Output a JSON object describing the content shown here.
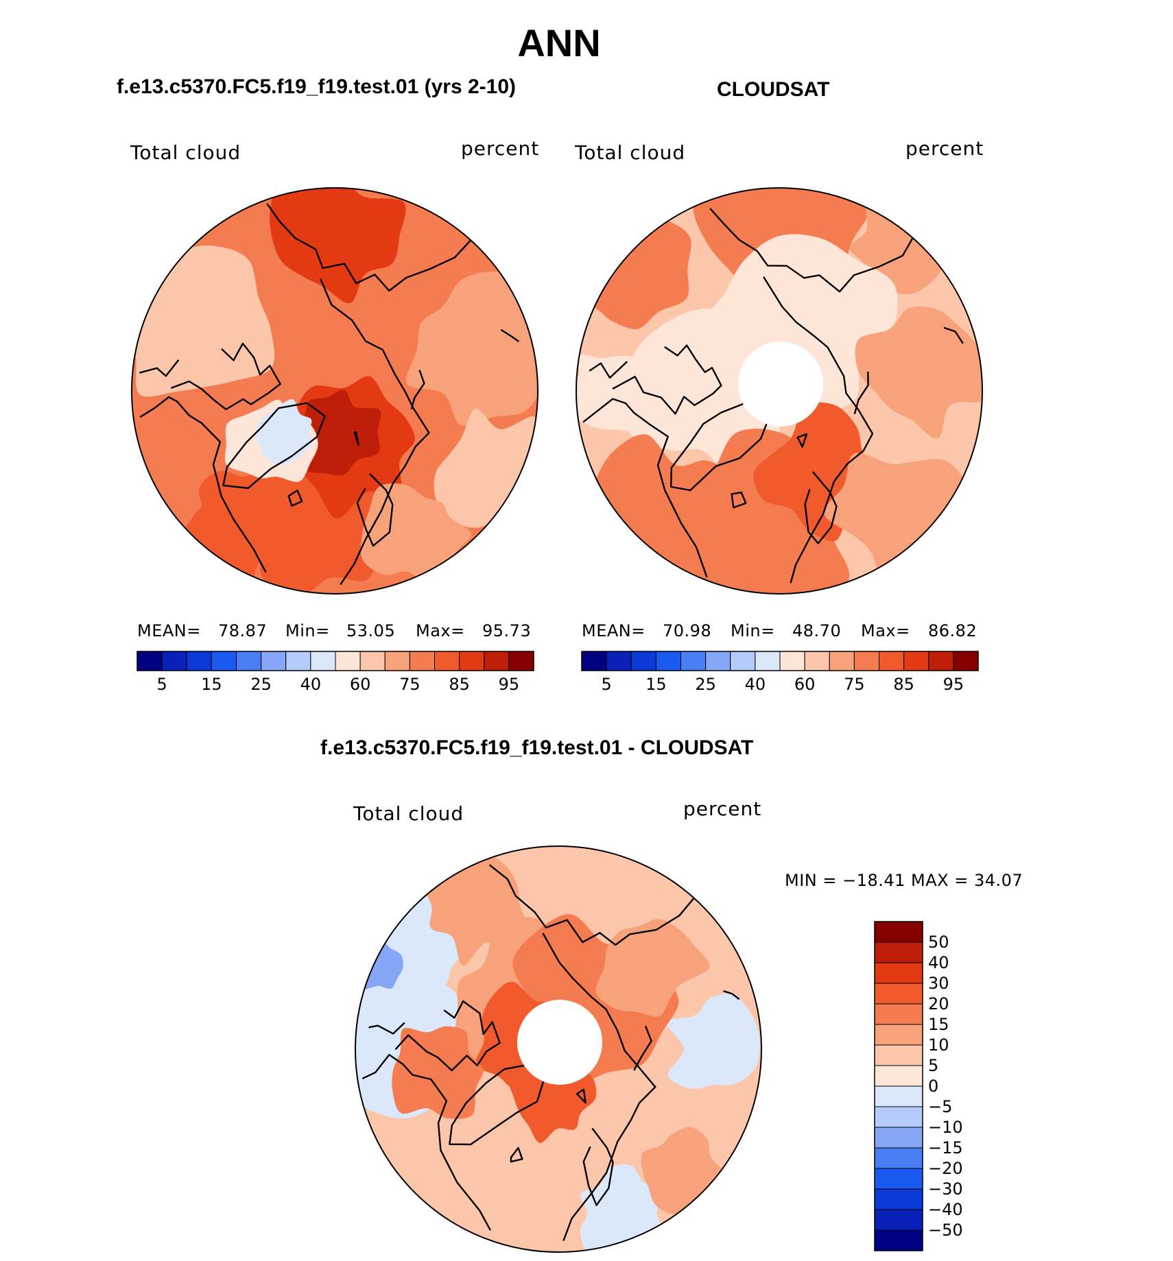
{
  "figure": {
    "title": "ANN"
  },
  "colors": {
    "cmap_full": [
      "#000080",
      "#0a21b8",
      "#0b3ad8",
      "#1a5af0",
      "#4a7ef6",
      "#86a6f7",
      "#b5cbf9",
      "#dbe8fb",
      "#fde6d8",
      "#fbc6aa",
      "#f8a27b",
      "#f47c50",
      "#f05a2c",
      "#e33a14",
      "#bf1e08",
      "#860000"
    ],
    "cmap_diff": [
      "#860000",
      "#bf1e08",
      "#e33a14",
      "#f05a2c",
      "#f47c50",
      "#f8a27b",
      "#fbc6aa",
      "#fde6d8",
      "#dbe8fb",
      "#b5cbf9",
      "#86a6f7",
      "#4a7ef6",
      "#1a5af0",
      "#0b3ad8",
      "#0a21b8",
      "#000080"
    ],
    "coastline": "#000000",
    "hole": "#ffffff"
  },
  "chart_data": [
    {
      "type": "heatmap",
      "projection": "north-polar-stereographic",
      "title": "f.e13.c5370.FC5.f19_f19.test.01 (yrs 2-10)",
      "left_label": "Total cloud",
      "right_label": "percent",
      "stats": {
        "mean_label": "MEAN=",
        "mean": "78.87",
        "min_label": "Min=",
        "min": "53.05",
        "max_label": "Max=",
        "max": "95.73"
      },
      "colorbar_ticks": [
        "5",
        "15",
        "25",
        "40",
        "60",
        "75",
        "85",
        "95"
      ],
      "pole_hole": false
    },
    {
      "type": "heatmap",
      "projection": "north-polar-stereographic",
      "title": "CLOUDSAT",
      "left_label": "Total cloud",
      "right_label": "percent",
      "stats": {
        "mean_label": "MEAN=",
        "mean": "70.98",
        "min_label": "Min=",
        "min": "48.70",
        "max_label": "Max=",
        "max": "86.82"
      },
      "colorbar_ticks": [
        "5",
        "15",
        "25",
        "40",
        "60",
        "75",
        "85",
        "95"
      ],
      "pole_hole": true
    },
    {
      "type": "heatmap",
      "projection": "north-polar-stereographic",
      "title": "f.e13.c5370.FC5.f19_f19.test.01 - CLOUDSAT",
      "left_label": "Total cloud",
      "right_label": "percent",
      "stats_text": "MIN = −18.41 MAX =   34.07",
      "colorbar_ticks": [
        "50",
        "40",
        "30",
        "20",
        "15",
        "10",
        "5",
        "0",
        "−5",
        "−10",
        "−15",
        "−20",
        "−30",
        "−40",
        "−50"
      ],
      "pole_hole": true
    }
  ]
}
